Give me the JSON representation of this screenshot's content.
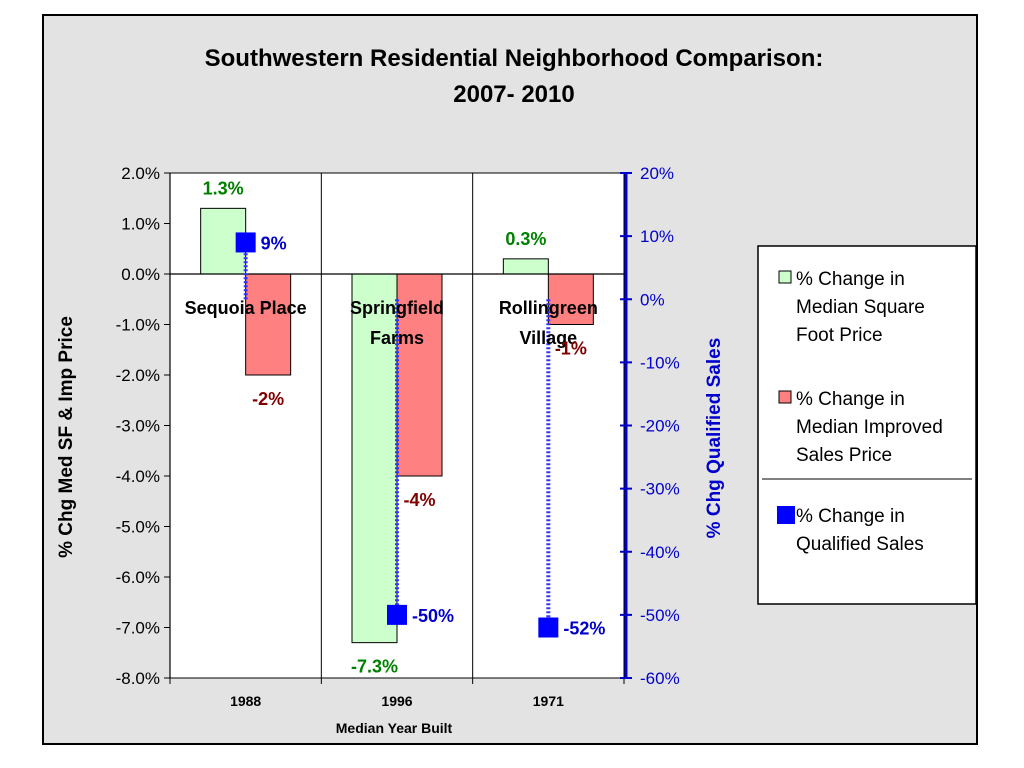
{
  "chart_data": {
    "type": "bar",
    "title": "Southwestern Residential Neighborhood Comparison:",
    "subtitle": "2007- 2010",
    "xlabel": "Median Year Built",
    "ylabel": "% Chg Med SF & Imp Price",
    "y2label": "% Chg Qualified Sales",
    "categories": [
      "1988",
      "1996",
      "1971"
    ],
    "neighborhoods": [
      [
        "Sequoia Place"
      ],
      [
        "Springfield",
        "Farms"
      ],
      [
        "Rollingreen",
        "Village"
      ]
    ],
    "ylim": [
      -8.0,
      2.0
    ],
    "y_ticks": [
      "2.0%",
      "1.0%",
      "0.0%",
      "-1.0%",
      "-2.0%",
      "-3.0%",
      "-4.0%",
      "-5.0%",
      "-6.0%",
      "-7.0%",
      "-8.0%"
    ],
    "y2lim": [
      -60,
      20
    ],
    "y2_ticks": [
      "20%",
      "10%",
      "0%",
      "-10%",
      "-20%",
      "-30%",
      "-40%",
      "-50%",
      "-60%"
    ],
    "series": [
      {
        "name": "% Change in Median Square Foot Price",
        "legend_lines": [
          "% Change in",
          "Median Square",
          "Foot Price"
        ],
        "axis": "left",
        "values": [
          1.3,
          -7.3,
          0.3
        ],
        "labels": [
          "1.3%",
          "-7.3%",
          "0.3%"
        ],
        "color": "#ccffcc",
        "label_color": "#008000"
      },
      {
        "name": "% Change in Median Improved Sales Price",
        "legend_lines": [
          "% Change in",
          "Median Improved",
          "Sales Price"
        ],
        "axis": "left",
        "values": [
          -2.0,
          -4.0,
          -1.0
        ],
        "labels": [
          "-2%",
          "-4%",
          "-1%"
        ],
        "color": "#ff8080",
        "label_color": "#800000"
      },
      {
        "name": "% Change in Qualified Sales",
        "legend_lines": [
          "% Change in",
          "Qualified Sales"
        ],
        "axis": "right",
        "values": [
          9,
          -50,
          -52
        ],
        "labels": [
          "9%",
          "-50%",
          "-52%"
        ],
        "color": "#0000ff",
        "label_color": "#0000cc"
      }
    ],
    "grid": false,
    "legend_position": "right"
  }
}
